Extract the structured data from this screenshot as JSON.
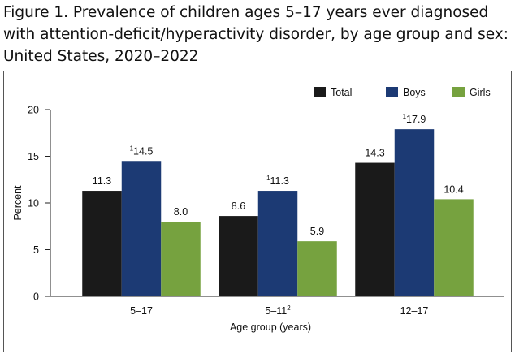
{
  "chart_data": {
    "type": "bar",
    "title": "Figure 1. Prevalence of children ages 5–17 years ever diagnosed with attention-deficit/hyperactivity disorder, by age group and sex: United States, 2020–2022",
    "categories": [
      "5–17",
      "5–11",
      "12–17"
    ],
    "category_notes": [
      null,
      "2",
      null
    ],
    "x_label": "Age group (years)",
    "y_label": "Percent",
    "ylim": [
      0,
      20
    ],
    "yticks": [
      0,
      5,
      10,
      15,
      20
    ],
    "legend": "top-right",
    "series": [
      {
        "name": "Total",
        "color": "#1a1a1a",
        "values": [
          11.3,
          8.6,
          14.3
        ],
        "value_labels": [
          "11.3",
          "8.6",
          "14.3"
        ]
      },
      {
        "name": "Boys",
        "color": "#1c3a74",
        "values": [
          14.5,
          11.3,
          17.9
        ],
        "value_labels": [
          "14.5",
          "11.3",
          "17.9"
        ],
        "value_notes": [
          "1",
          "1",
          "1"
        ]
      },
      {
        "name": "Girls",
        "color": "#76a23f",
        "values": [
          8.0,
          5.9,
          10.4
        ],
        "value_labels": [
          "8.0",
          "5.9",
          "10.4"
        ]
      }
    ]
  }
}
